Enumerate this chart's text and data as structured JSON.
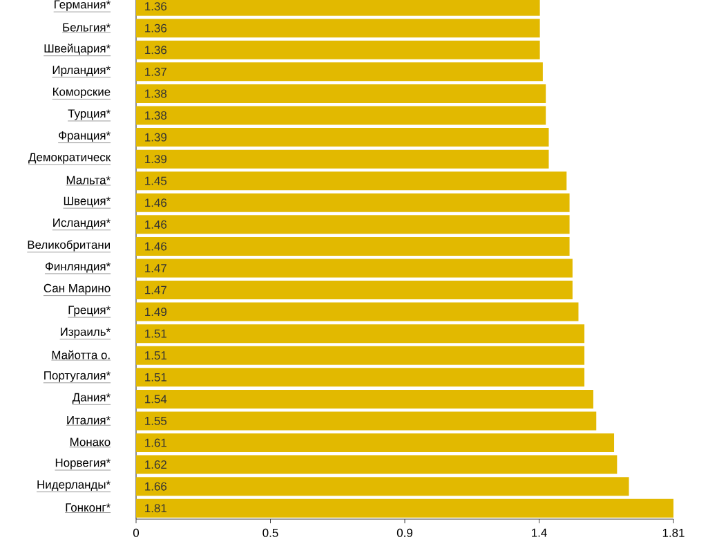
{
  "chart_data": {
    "type": "bar",
    "orientation": "horizontal",
    "data_labels": true,
    "color": "#e2b900",
    "categories": [
      "Германия*",
      "Бельгия*",
      "Швейцария*",
      "Ирландия*",
      "Коморские",
      "Турция*",
      "Франция*",
      "Демократическ",
      "Мальта*",
      "Швеция*",
      "Исландия*",
      "Великобритани",
      "Финляндия*",
      "Сан Марино",
      "Греция*",
      "Израиль*",
      "Майотта о.",
      "Португалия*",
      "Дания*",
      "Италия*",
      "Монако",
      "Норвегия*",
      "Нидерланды*",
      "Гонконг*"
    ],
    "values": [
      1.36,
      1.36,
      1.36,
      1.37,
      1.38,
      1.38,
      1.39,
      1.39,
      1.45,
      1.46,
      1.46,
      1.46,
      1.47,
      1.47,
      1.49,
      1.51,
      1.51,
      1.51,
      1.54,
      1.55,
      1.61,
      1.62,
      1.66,
      1.81
    ],
    "xlim": [
      0,
      1.81
    ],
    "xticks": [
      0,
      {
        "value": 0.4525,
        "label": "0.5"
      },
      {
        "value": 0.905,
        "label": "0.9"
      },
      {
        "value": 1.3575,
        "label": "1.4"
      },
      1.81
    ],
    "grid": false
  }
}
